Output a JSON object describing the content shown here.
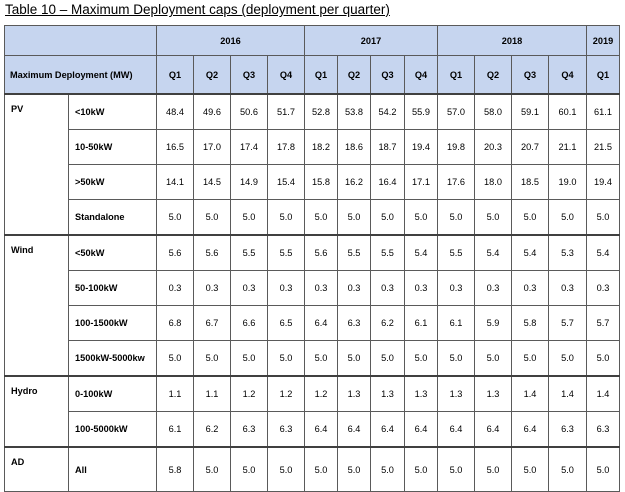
{
  "caption": "Table 10 – Maximum Deployment caps (deployment per quarter)",
  "header": {
    "title": "Maximum Deployment (MW)",
    "years": [
      {
        "label": "2016",
        "span": 4
      },
      {
        "label": "2017",
        "span": 4
      },
      {
        "label": "2018",
        "span": 4
      },
      {
        "label": "2019",
        "span": 1
      }
    ],
    "quarters": [
      "Q1",
      "Q2",
      "Q3",
      "Q4",
      "Q1",
      "Q2",
      "Q3",
      "Q4",
      "Q1",
      "Q2",
      "Q3",
      "Q4",
      "Q1"
    ]
  },
  "groups": [
    {
      "name": "PV",
      "rows": [
        {
          "label": "<10kW",
          "values": [
            "48.4",
            "49.6",
            "50.6",
            "51.7",
            "52.8",
            "53.8",
            "54.2",
            "55.9",
            "57.0",
            "58.0",
            "59.1",
            "60.1",
            "61.1"
          ]
        },
        {
          "label": "10-50kW",
          "values": [
            "16.5",
            "17.0",
            "17.4",
            "17.8",
            "18.2",
            "18.6",
            "18.7",
            "19.4",
            "19.8",
            "20.3",
            "20.7",
            "21.1",
            "21.5"
          ]
        },
        {
          "label": ">50kW",
          "values": [
            "14.1",
            "14.5",
            "14.9",
            "15.4",
            "15.8",
            "16.2",
            "16.4",
            "17.1",
            "17.6",
            "18.0",
            "18.5",
            "19.0",
            "19.4"
          ]
        },
        {
          "label": "Standalone",
          "values": [
            "5.0",
            "5.0",
            "5.0",
            "5.0",
            "5.0",
            "5.0",
            "5.0",
            "5.0",
            "5.0",
            "5.0",
            "5.0",
            "5.0",
            "5.0"
          ]
        }
      ]
    },
    {
      "name": "Wind",
      "rows": [
        {
          "label": "<50kW",
          "values": [
            "5.6",
            "5.6",
            "5.5",
            "5.5",
            "5.6",
            "5.5",
            "5.5",
            "5.4",
            "5.5",
            "5.4",
            "5.4",
            "5.3",
            "5.4"
          ]
        },
        {
          "label": "50-100kW",
          "values": [
            "0.3",
            "0.3",
            "0.3",
            "0.3",
            "0.3",
            "0.3",
            "0.3",
            "0.3",
            "0.3",
            "0.3",
            "0.3",
            "0.3",
            "0.3"
          ]
        },
        {
          "label": "100-1500kW",
          "values": [
            "6.8",
            "6.7",
            "6.6",
            "6.5",
            "6.4",
            "6.3",
            "6.2",
            "6.1",
            "6.1",
            "5.9",
            "5.8",
            "5.7",
            "5.7"
          ]
        },
        {
          "label": "1500kW-5000kw",
          "values": [
            "5.0",
            "5.0",
            "5.0",
            "5.0",
            "5.0",
            "5.0",
            "5.0",
            "5.0",
            "5.0",
            "5.0",
            "5.0",
            "5.0",
            "5.0"
          ]
        }
      ]
    },
    {
      "name": "Hydro",
      "rows": [
        {
          "label": "0-100kW",
          "values": [
            "1.1",
            "1.1",
            "1.2",
            "1.2",
            "1.2",
            "1.3",
            "1.3",
            "1.3",
            "1.3",
            "1.3",
            "1.4",
            "1.4",
            "1.4"
          ]
        },
        {
          "label": "100-5000kW",
          "values": [
            "6.1",
            "6.2",
            "6.3",
            "6.3",
            "6.4",
            "6.4",
            "6.4",
            "6.4",
            "6.4",
            "6.4",
            "6.4",
            "6.3",
            "6.3"
          ]
        }
      ]
    },
    {
      "name": "AD",
      "rows": [
        {
          "label": "All",
          "values": [
            "5.8",
            "5.0",
            "5.0",
            "5.0",
            "5.0",
            "5.0",
            "5.0",
            "5.0",
            "5.0",
            "5.0",
            "5.0",
            "5.0",
            "5.0"
          ]
        }
      ]
    }
  ]
}
